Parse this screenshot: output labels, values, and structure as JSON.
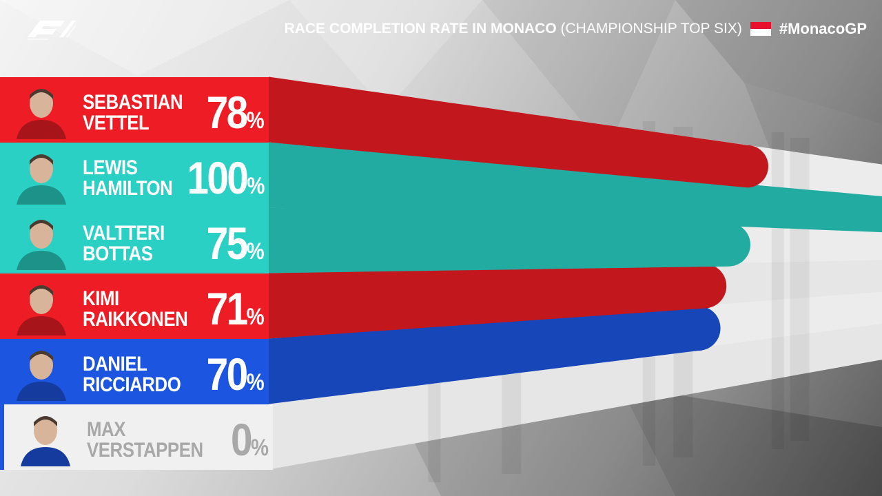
{
  "header": {
    "title_bold": "RACE COMPLETION RATE IN MONACO",
    "title_sub": "(CHAMPIONSHIP TOP SIX)",
    "hashtag": "#MonacoGP",
    "flag_colors": [
      "#e8112d",
      "#ffffff"
    ]
  },
  "logo": {
    "name": "formula-1-logo"
  },
  "colors": {
    "ferrari": "#ee1c24",
    "mercedes": "#2ad0c4",
    "redbull": "#1c55e0",
    "none": "#f0f0f0",
    "text_light": "#ffffff",
    "text_muted": "#a8a8a8"
  },
  "chart_data": {
    "type": "bar",
    "title": "RACE COMPLETION RATE IN MONACO (CHAMPIONSHIP TOP SIX)",
    "unit": "%",
    "xlim": [
      0,
      100
    ],
    "categories": [
      "SEBASTIAN VETTEL",
      "LEWIS HAMILTON",
      "VALTTERI BOTTAS",
      "KIMI RAIKKONEN",
      "DANIEL RICCIARDO",
      "MAX VERSTAPPEN"
    ],
    "rows": [
      {
        "first": "SEBASTIAN",
        "last": "VETTEL",
        "value": 78,
        "team": "ferrari"
      },
      {
        "first": "LEWIS",
        "last": "HAMILTON",
        "value": 100,
        "team": "mercedes"
      },
      {
        "first": "VALTTERI",
        "last": "BOTTAS",
        "value": 75,
        "team": "mercedes"
      },
      {
        "first": "KIMI",
        "last": "RAIKKONEN",
        "value": 71,
        "team": "ferrari"
      },
      {
        "first": "DANIEL",
        "last": "RICCIARDO",
        "value": 70,
        "team": "redbull"
      },
      {
        "first": "MAX",
        "last": "VERSTAPPEN",
        "value": 0,
        "team": "none"
      }
    ]
  }
}
